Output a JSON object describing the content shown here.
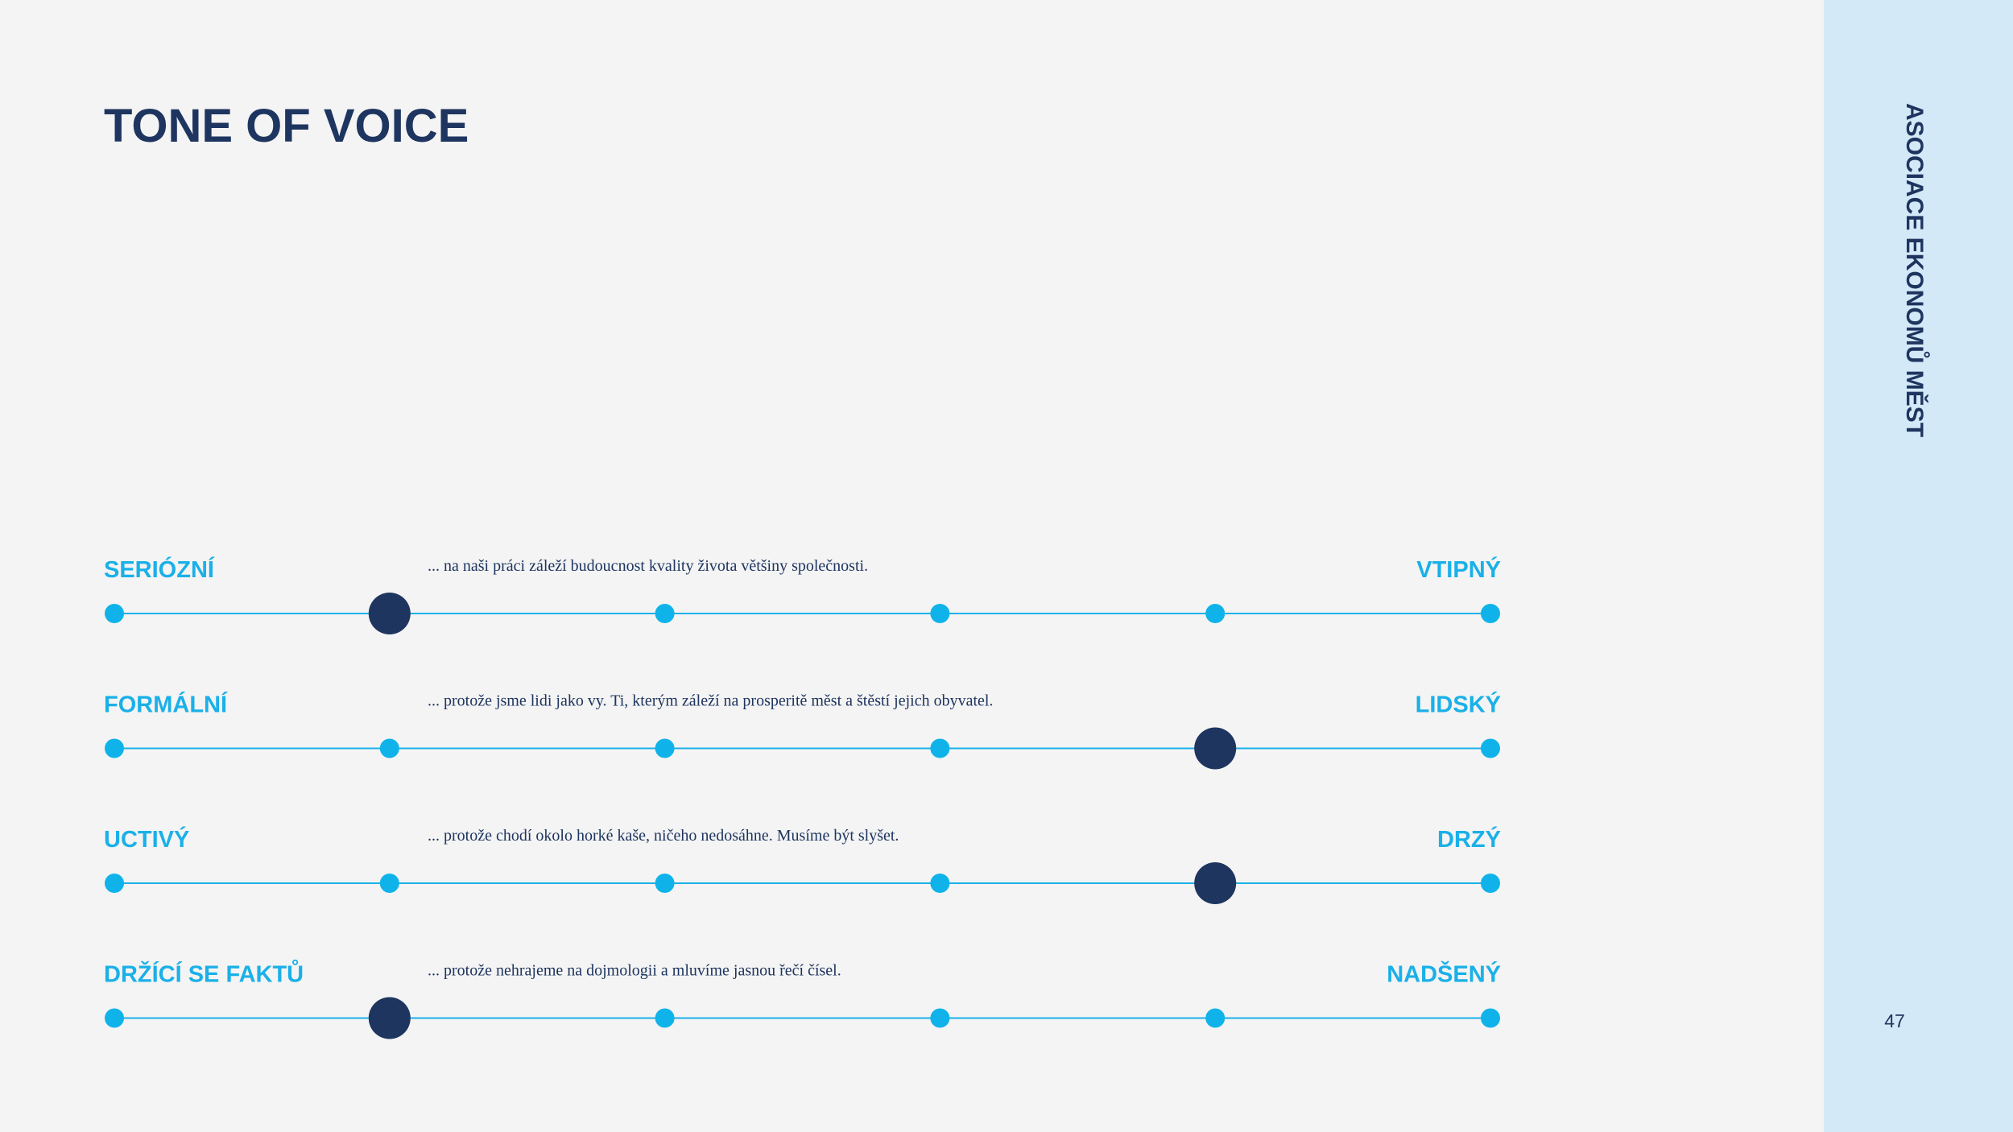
{
  "header": {
    "title": "TONE OF VOICE"
  },
  "sidebar": {
    "text": "ASOCIACE EKONOMŮ MĚST",
    "page_number": "47"
  },
  "scales": [
    {
      "left": "SERIÓZNÍ",
      "right": "VTIPNÝ",
      "description": "... na naši práci záleží budoucnost kvality života většiny společnosti.",
      "steps": 6,
      "selected": 1
    },
    {
      "left": "FORMÁLNÍ",
      "right": "LIDSKÝ",
      "description": "... protože jsme lidi jako vy. Ti, kterým záleží na prosperitě měst a štěstí jejich obyvatel.",
      "steps": 6,
      "selected": 4
    },
    {
      "left": "UCTIVÝ",
      "right": "DRZÝ",
      "description": "... protože chodí okolo horké kaše, ničeho nedosáhne. Musíme být slyšet.",
      "steps": 6,
      "selected": 4
    },
    {
      "left": "DRŽÍCÍ SE FAKTŮ",
      "right": "NADŠENÝ",
      "description": "... protože nehrajeme na dojmologii a mluvíme jasnou řečí čísel.",
      "steps": 6,
      "selected": 1
    }
  ]
}
